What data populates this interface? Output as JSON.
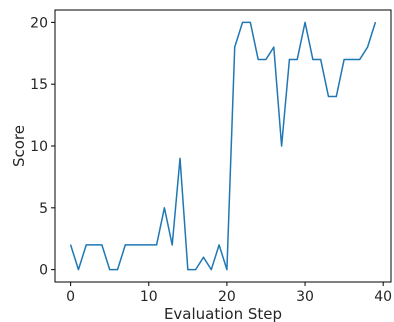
{
  "chart_data": {
    "type": "line",
    "title": "",
    "xlabel": "Evaluation Step",
    "ylabel": "Score",
    "xlim": [
      -2,
      41
    ],
    "ylim": [
      -1,
      21
    ],
    "x_ticks": [
      0,
      10,
      20,
      30,
      40
    ],
    "y_ticks": [
      0,
      5,
      10,
      15,
      20
    ],
    "grid": false,
    "legend": "none",
    "line_color": "#1f77b4",
    "series": [
      {
        "x": [
          0,
          1,
          2,
          3,
          4,
          5,
          6,
          7,
          8,
          9,
          10,
          11,
          12,
          13,
          14,
          15,
          16,
          17,
          18,
          19,
          20,
          21,
          22,
          23,
          24,
          25,
          26,
          27,
          28,
          29,
          30,
          31,
          32,
          33,
          34,
          35,
          36,
          37,
          38,
          39
        ],
        "values": [
          2,
          0,
          2,
          2,
          2,
          0,
          0,
          2,
          2,
          2,
          2,
          2,
          5,
          2,
          9,
          0,
          0,
          1,
          0,
          2,
          0,
          18,
          20,
          20,
          17,
          17,
          18,
          10,
          17,
          17,
          20,
          17,
          17,
          14,
          14,
          17,
          17,
          17,
          18,
          20
        ]
      }
    ]
  }
}
